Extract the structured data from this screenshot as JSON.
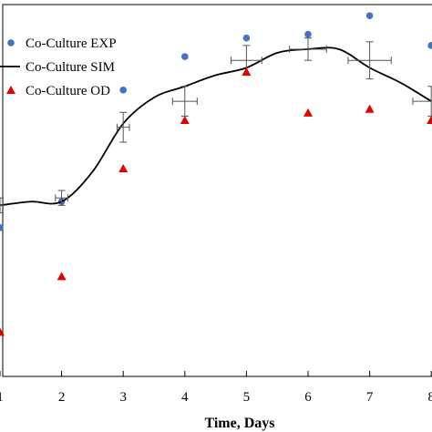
{
  "chart_data": {
    "type": "scatter",
    "title": "",
    "xlabel": "Time, Days",
    "ylabel": "",
    "xlim": [
      1,
      8
    ],
    "ylim": [
      0,
      1.0
    ],
    "x_ticks": [
      1,
      2,
      3,
      4,
      5,
      6,
      7,
      8
    ],
    "grid": false,
    "legend_position": "top-left",
    "series": [
      {
        "name": "Co-Culture EXP",
        "kind": "scatter",
        "marker": "circle",
        "color": "#4472c4",
        "x": [
          1,
          2,
          3,
          4,
          5,
          6,
          7,
          8
        ],
        "y": [
          0.4,
          0.47,
          0.77,
          0.86,
          0.91,
          0.92,
          0.97,
          0.89
        ]
      },
      {
        "name": "Co-Culture SIM",
        "kind": "line",
        "color": "#000000",
        "x": [
          1,
          1.5,
          2,
          2.5,
          3,
          3.5,
          4,
          4.5,
          5,
          5.5,
          6,
          6.5,
          7,
          7.5,
          8
        ],
        "y": [
          0.46,
          0.47,
          0.47,
          0.55,
          0.68,
          0.75,
          0.78,
          0.81,
          0.83,
          0.87,
          0.88,
          0.88,
          0.83,
          0.79,
          0.74
        ],
        "error_points": [
          {
            "x": 1,
            "y": 0.46,
            "yerr": 0.02,
            "xerr": 0.05
          },
          {
            "x": 2,
            "y": 0.48,
            "yerr": 0.02,
            "xerr": 0.1
          },
          {
            "x": 3,
            "y": 0.67,
            "yerr": 0.04,
            "xerr": 0.1
          },
          {
            "x": 4,
            "y": 0.74,
            "yerr": 0.04,
            "xerr": 0.2
          },
          {
            "x": 5,
            "y": 0.85,
            "yerr": 0.04,
            "xerr": 0.25
          },
          {
            "x": 6,
            "y": 0.88,
            "yerr": 0.03,
            "xerr": 0.3
          },
          {
            "x": 7,
            "y": 0.85,
            "yerr": 0.05,
            "xerr": 0.35
          },
          {
            "x": 8,
            "y": 0.74,
            "yerr": 0.04,
            "xerr": 0.3
          }
        ]
      },
      {
        "name": "Co-Culture OD",
        "kind": "scatter",
        "marker": "triangle",
        "color": "#e00000",
        "x": [
          1,
          2,
          3,
          4,
          5,
          6,
          7,
          8
        ],
        "y": [
          0.12,
          0.27,
          0.56,
          0.69,
          0.82,
          0.71,
          0.72,
          0.69
        ]
      }
    ]
  }
}
